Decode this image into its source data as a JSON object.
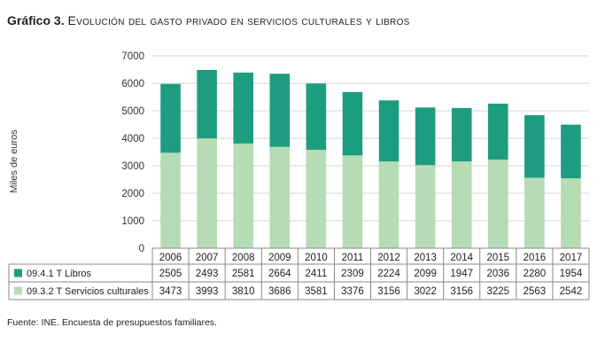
{
  "title": {
    "label": "Gráfico 3.",
    "text": "Evolución del gasto privado en servicios culturales y libros"
  },
  "source": "Fuente: INE. Encuesta de presupuestos familiares.",
  "chart_data": {
    "type": "bar",
    "stacked": true,
    "title": "Gráfico 3. Evolución del gasto privado en servicios culturales y libros",
    "xlabel": "",
    "ylabel": "Miles de euros",
    "ylim": [
      0,
      7000
    ],
    "yticks": [
      0,
      1000,
      2000,
      3000,
      4000,
      5000,
      6000,
      7000
    ],
    "ytick_labels": [
      "0",
      "1000",
      "2000",
      "3000",
      "4000",
      "5000",
      "6000",
      "7000"
    ],
    "grid": true,
    "legend": "data-table-below",
    "categories": [
      "2006",
      "2007",
      "2008",
      "2009",
      "2010",
      "2011",
      "2012",
      "2013",
      "2014",
      "2015",
      "2016",
      "2017"
    ],
    "series": [
      {
        "name": "09.3.2 T Servicios culturales",
        "color": "#b5dcb4",
        "values": [
          3473,
          3993,
          3810,
          3686,
          3581,
          3376,
          3156,
          3022,
          3156,
          3225,
          2563,
          2542
        ],
        "labels": [
          "3473",
          "3993",
          "3810",
          "3686",
          "3581",
          "3376",
          "3156",
          "3022",
          "3156",
          "3225",
          "2563",
          "2542"
        ]
      },
      {
        "name": "09.4.1 T Libros",
        "color": "#1e9c80",
        "values": [
          2505,
          2493,
          2581,
          2664,
          2411,
          2309,
          2224,
          2099,
          1947,
          2036,
          2280,
          1954
        ],
        "labels": [
          "2505",
          "2493",
          "2581",
          "2664",
          "2411",
          "2309",
          "2224",
          "2099",
          "1947",
          "2036",
          "2280",
          "1954"
        ]
      }
    ],
    "table_row_order": [
      1,
      0
    ]
  }
}
